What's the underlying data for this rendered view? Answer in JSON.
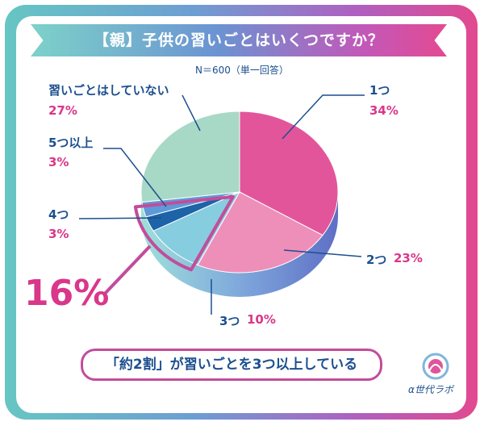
{
  "title": "【親】子供の習いごとはいくつですか？",
  "subtitle": "N＝600（単一回答）",
  "chart_data": {
    "type": "pie",
    "title": "【親】子供の習いごとはいくつですか？",
    "slices": [
      {
        "label": "1つ",
        "value": 34,
        "value_label": "34%",
        "color": "#e3559a"
      },
      {
        "label": "2つ",
        "value": 23,
        "value_label": "23%",
        "color": "#ee8fb9"
      },
      {
        "label": "3つ",
        "value": 10,
        "value_label": "10%",
        "color": "#87cde0"
      },
      {
        "label": "4つ",
        "value": 3,
        "value_label": "3%",
        "color": "#1c63a8"
      },
      {
        "label": "5つ以上",
        "value": 3,
        "value_label": "3%",
        "color": "#5d9bd8"
      },
      {
        "label": "習いごとはしていない",
        "value": 27,
        "value_label": "27%",
        "color": "#a8d9c6"
      }
    ],
    "highlight": {
      "label": "16%",
      "covers": [
        "3つ",
        "4つ",
        "5つ以上"
      ]
    }
  },
  "note": "「約2割」が習いごとを3つ以上している",
  "brand": "α世代ラボ",
  "colors": {
    "navy": "#1c4f8f",
    "pink": "#d9378a",
    "frame_pink": "#c24d9b"
  }
}
